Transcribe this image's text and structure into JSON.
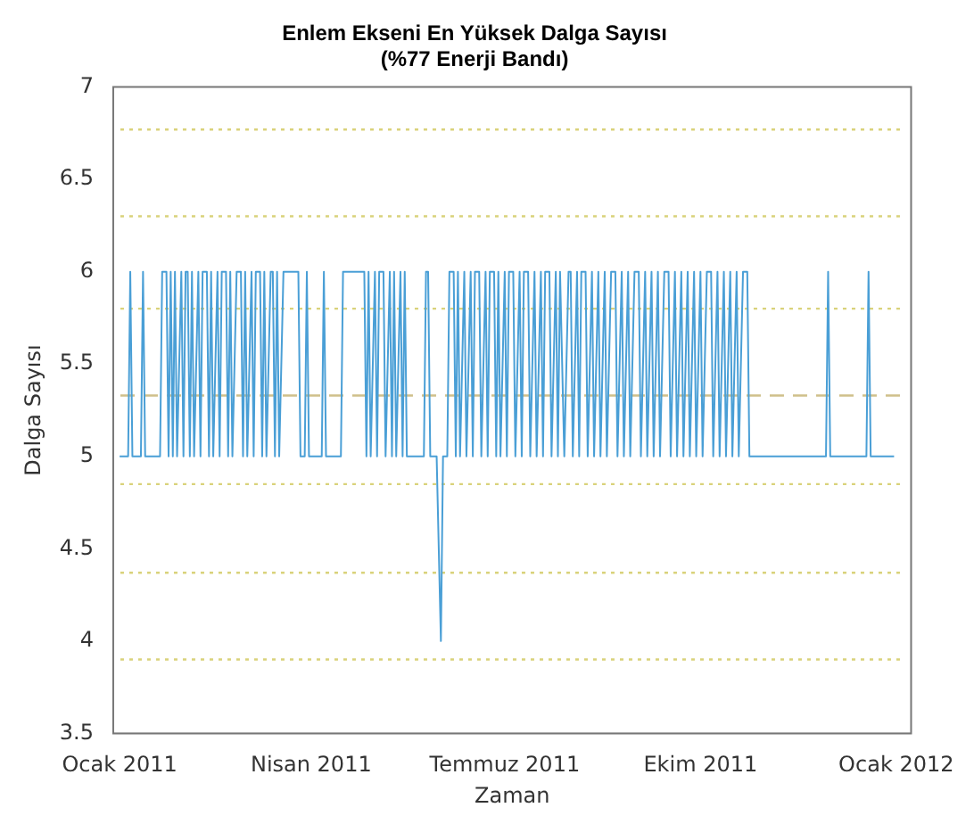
{
  "chart_data": {
    "type": "line",
    "title": "Enlem Ekseni En Yüksek Dalga Sayısı",
    "subtitle": "(%77 Enerji Bandı)",
    "xlabel": "Zaman",
    "ylabel": "Dalga Sayısı",
    "xlim": [
      "2010-12-29",
      "2012-01-08"
    ],
    "xticks": [
      {
        "value": "2011-01-01",
        "label": "Ocak 2011"
      },
      {
        "value": "2011-04-01",
        "label": "Nisan 2011"
      },
      {
        "value": "2011-07-01",
        "label": "Temmuz 2011"
      },
      {
        "value": "2011-10-01",
        "label": "Ekim 2011"
      },
      {
        "value": "2012-01-01",
        "label": "Ocak 2012"
      }
    ],
    "ylim": [
      3.5,
      7
    ],
    "yticks": [
      3.5,
      4,
      4.5,
      5,
      5.5,
      6,
      6.5,
      7
    ],
    "grid": false,
    "legend": false,
    "marker": "none",
    "line_style": "solid",
    "ref_lines": [
      {
        "axis": "y",
        "value": 6.77,
        "color": "#d9d27a",
        "line_style": "dotted"
      },
      {
        "axis": "y",
        "value": 6.3,
        "color": "#d9d27a",
        "line_style": "dotted"
      },
      {
        "axis": "y",
        "value": 5.8,
        "color": "#d9d27a",
        "line_style": "dotted"
      },
      {
        "axis": "y",
        "value": 5.33,
        "color": "#cfc08a",
        "line_style": "dashed"
      },
      {
        "axis": "y",
        "value": 4.85,
        "color": "#d9d27a",
        "line_style": "dotted"
      },
      {
        "axis": "y",
        "value": 4.37,
        "color": "#d9d27a",
        "line_style": "dotted"
      },
      {
        "axis": "y",
        "value": 3.9,
        "color": "#d9d27a",
        "line_style": "dotted"
      }
    ],
    "series": [
      {
        "color": "#4a9fd6",
        "x": [
          "2011-01-01",
          "2011-01-05",
          "2011-01-06",
          "2011-01-07",
          "2011-01-11",
          "2011-01-12",
          "2011-01-13",
          "2011-01-20",
          "2011-01-21",
          "2011-01-23",
          "2011-01-24",
          "2011-01-25",
          "2011-01-26",
          "2011-01-27",
          "2011-01-28",
          "2011-01-30",
          "2011-01-31",
          "2011-02-01",
          "2011-02-02",
          "2011-02-03",
          "2011-02-04",
          "2011-02-05",
          "2011-02-07",
          "2011-02-08",
          "2011-02-09",
          "2011-02-11",
          "2011-02-12",
          "2011-02-13",
          "2011-02-14",
          "2011-02-16",
          "2011-02-17",
          "2011-02-18",
          "2011-02-20",
          "2011-02-21",
          "2011-02-22",
          "2011-02-23",
          "2011-02-25",
          "2011-02-27",
          "2011-02-28",
          "2011-03-01",
          "2011-03-02",
          "2011-03-04",
          "2011-03-05",
          "2011-03-06",
          "2011-03-08",
          "2011-03-09",
          "2011-03-10",
          "2011-03-11",
          "2011-03-13",
          "2011-03-14",
          "2011-03-15",
          "2011-03-16",
          "2011-03-17",
          "2011-03-19",
          "2011-03-26",
          "2011-03-27",
          "2011-03-29",
          "2011-03-30",
          "2011-03-31",
          "2011-04-06",
          "2011-04-07",
          "2011-04-08",
          "2011-04-15",
          "2011-04-16",
          "2011-04-26",
          "2011-04-27",
          "2011-04-28",
          "2011-04-29",
          "2011-05-01",
          "2011-05-02",
          "2011-05-03",
          "2011-05-05",
          "2011-05-06",
          "2011-05-08",
          "2011-05-09",
          "2011-05-10",
          "2011-05-11",
          "2011-05-13",
          "2011-05-14",
          "2011-05-15",
          "2011-05-16",
          "2011-05-24",
          "2011-05-25",
          "2011-05-26",
          "2011-05-27",
          "2011-05-30",
          "2011-06-01",
          "2011-06-02",
          "2011-06-04",
          "2011-06-05",
          "2011-06-07",
          "2011-06-08",
          "2011-06-09",
          "2011-06-10",
          "2011-06-12",
          "2011-06-13",
          "2011-06-15",
          "2011-06-16",
          "2011-06-17",
          "2011-06-19",
          "2011-06-20",
          "2011-06-22",
          "2011-06-23",
          "2011-06-24",
          "2011-06-26",
          "2011-06-27",
          "2011-06-28",
          "2011-06-29",
          "2011-07-01",
          "2011-07-02",
          "2011-07-03",
          "2011-07-05",
          "2011-07-06",
          "2011-07-08",
          "2011-07-09",
          "2011-07-10",
          "2011-07-12",
          "2011-07-13",
          "2011-07-15",
          "2011-07-16",
          "2011-07-18",
          "2011-07-19",
          "2011-07-20",
          "2011-07-22",
          "2011-07-23",
          "2011-07-25",
          "2011-07-26",
          "2011-07-27",
          "2011-07-29",
          "2011-07-31",
          "2011-08-01",
          "2011-08-02",
          "2011-08-04",
          "2011-08-05",
          "2011-08-06",
          "2011-08-08",
          "2011-08-09",
          "2011-08-11",
          "2011-08-12",
          "2011-08-14",
          "2011-08-15",
          "2011-08-17",
          "2011-08-18",
          "2011-08-20",
          "2011-08-22",
          "2011-08-23",
          "2011-08-25",
          "2011-08-26",
          "2011-08-28",
          "2011-08-29",
          "2011-08-31",
          "2011-09-02",
          "2011-09-03",
          "2011-09-05",
          "2011-09-06",
          "2011-09-08",
          "2011-09-09",
          "2011-09-11",
          "2011-09-12",
          "2011-09-14",
          "2011-09-16",
          "2011-09-17",
          "2011-09-19",
          "2011-09-20",
          "2011-09-22",
          "2011-09-23",
          "2011-09-25",
          "2011-09-26",
          "2011-09-28",
          "2011-09-29",
          "2011-10-01",
          "2011-10-02",
          "2011-10-04",
          "2011-10-06",
          "2011-10-07",
          "2011-10-09",
          "2011-10-10",
          "2011-10-12",
          "2011-10-13",
          "2011-10-15",
          "2011-10-16",
          "2011-10-18",
          "2011-10-19",
          "2011-10-21",
          "2011-10-23",
          "2011-10-24",
          "2011-11-29",
          "2011-11-30",
          "2011-12-01",
          "2011-12-18",
          "2011-12-19",
          "2011-12-20",
          "2011-12-31"
        ],
        "values": [
          5,
          5,
          6,
          5,
          5,
          6,
          5,
          5,
          6,
          6,
          5,
          6,
          5,
          6,
          5,
          6,
          5,
          6,
          6,
          5,
          6,
          5,
          6,
          5,
          6,
          6,
          5,
          6,
          5,
          6,
          5,
          6,
          6,
          5,
          6,
          5,
          6,
          6,
          5,
          6,
          5,
          6,
          5,
          6,
          6,
          5,
          6,
          5,
          6,
          6,
          5,
          6,
          5,
          6,
          6,
          5,
          5,
          6,
          5,
          5,
          6,
          5,
          5,
          6,
          6,
          5,
          6,
          5,
          6,
          5,
          6,
          6,
          5,
          6,
          5,
          6,
          5,
          6,
          5,
          6,
          5,
          5,
          6,
          6,
          5,
          5,
          4,
          5,
          5,
          6,
          6,
          5,
          6,
          5,
          6,
          5,
          6,
          5,
          6,
          6,
          5,
          6,
          5,
          6,
          6,
          5,
          6,
          5,
          6,
          5,
          6,
          6,
          5,
          6,
          5,
          6,
          6,
          5,
          6,
          5,
          6,
          5,
          6,
          6,
          5,
          6,
          5,
          6,
          5,
          6,
          6,
          5,
          6,
          5,
          6,
          6,
          5,
          6,
          5,
          6,
          5,
          6,
          5,
          6,
          6,
          5,
          6,
          5,
          6,
          5,
          6,
          6,
          5,
          6,
          5,
          6,
          5,
          6,
          5,
          6,
          6,
          5,
          6,
          5,
          6,
          5,
          6,
          5,
          6,
          5,
          6,
          5,
          6,
          6,
          5,
          6,
          5,
          6,
          5,
          6,
          5,
          6,
          5,
          6,
          6,
          5,
          5,
          6,
          5,
          5,
          6,
          5,
          5
        ]
      }
    ]
  }
}
